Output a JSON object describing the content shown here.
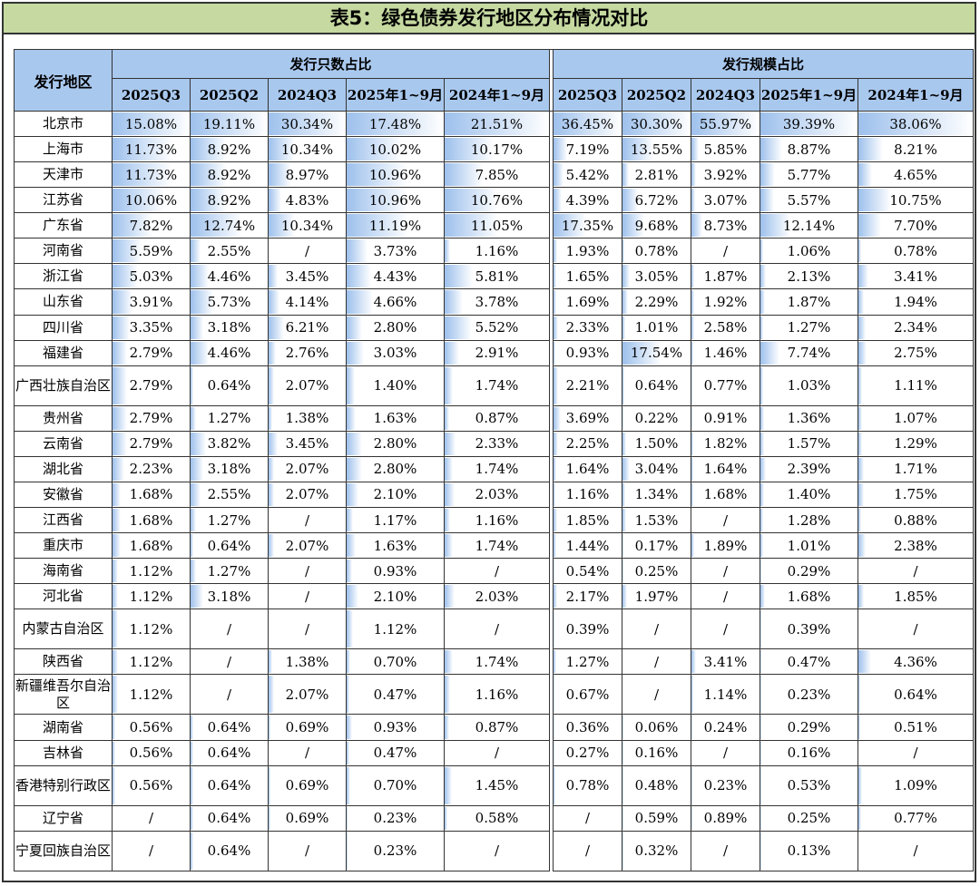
{
  "title": "表5：绿色债券发行地区分布情况对比",
  "header": {
    "region_label": "发行地区",
    "group_count": "发行只数占比",
    "group_scale": "发行规模占比",
    "columns": [
      "2025Q3",
      "2025Q2",
      "2024Q3",
      "2025年1~9月",
      "2024年1~9月"
    ]
  },
  "rows": [
    {
      "region": "北京市",
      "count": [
        "15.08%",
        "19.11%",
        "30.34%",
        "17.48%",
        "21.51%"
      ],
      "scale": [
        "36.45%",
        "30.30%",
        "55.97%",
        "39.39%",
        "38.06%"
      ]
    },
    {
      "region": "上海市",
      "count": [
        "11.73%",
        "8.92%",
        "10.34%",
        "10.02%",
        "10.17%"
      ],
      "scale": [
        "7.19%",
        "13.55%",
        "5.85%",
        "8.87%",
        "8.21%"
      ]
    },
    {
      "region": "天津市",
      "count": [
        "11.73%",
        "8.92%",
        "8.97%",
        "10.96%",
        "7.85%"
      ],
      "scale": [
        "5.42%",
        "2.81%",
        "3.92%",
        "5.77%",
        "4.65%"
      ]
    },
    {
      "region": "江苏省",
      "count": [
        "10.06%",
        "8.92%",
        "4.83%",
        "10.96%",
        "10.76%"
      ],
      "scale": [
        "4.39%",
        "6.72%",
        "3.07%",
        "5.57%",
        "10.75%"
      ]
    },
    {
      "region": "广东省",
      "count": [
        "7.82%",
        "12.74%",
        "10.34%",
        "11.19%",
        "11.05%"
      ],
      "scale": [
        "17.35%",
        "9.68%",
        "8.73%",
        "12.14%",
        "7.70%"
      ]
    },
    {
      "region": "河南省",
      "count": [
        "5.59%",
        "2.55%",
        "/",
        "3.73%",
        "1.16%"
      ],
      "scale": [
        "1.93%",
        "0.78%",
        "/",
        "1.06%",
        "0.78%"
      ]
    },
    {
      "region": "浙江省",
      "count": [
        "5.03%",
        "4.46%",
        "3.45%",
        "4.43%",
        "5.81%"
      ],
      "scale": [
        "1.65%",
        "3.05%",
        "1.87%",
        "2.13%",
        "3.41%"
      ]
    },
    {
      "region": "山东省",
      "count": [
        "3.91%",
        "5.73%",
        "4.14%",
        "4.66%",
        "3.78%"
      ],
      "scale": [
        "1.69%",
        "2.29%",
        "1.92%",
        "1.87%",
        "1.94%"
      ]
    },
    {
      "region": "四川省",
      "count": [
        "3.35%",
        "3.18%",
        "6.21%",
        "2.80%",
        "5.52%"
      ],
      "scale": [
        "2.33%",
        "1.01%",
        "2.58%",
        "1.27%",
        "2.34%"
      ]
    },
    {
      "region": "福建省",
      "count": [
        "2.79%",
        "4.46%",
        "2.76%",
        "3.03%",
        "2.91%"
      ],
      "scale": [
        "0.93%",
        "17.54%",
        "1.46%",
        "7.74%",
        "2.75%"
      ]
    },
    {
      "region": "广西壮族自治区",
      "tall": true,
      "count": [
        "2.79%",
        "0.64%",
        "2.07%",
        "1.40%",
        "1.74%"
      ],
      "scale": [
        "2.21%",
        "0.64%",
        "0.77%",
        "1.03%",
        "1.11%"
      ]
    },
    {
      "region": "贵州省",
      "count": [
        "2.79%",
        "1.27%",
        "1.38%",
        "1.63%",
        "0.87%"
      ],
      "scale": [
        "3.69%",
        "0.22%",
        "0.91%",
        "1.36%",
        "1.07%"
      ]
    },
    {
      "region": "云南省",
      "count": [
        "2.79%",
        "3.82%",
        "3.45%",
        "2.80%",
        "2.33%"
      ],
      "scale": [
        "2.25%",
        "1.50%",
        "1.82%",
        "1.57%",
        "1.29%"
      ]
    },
    {
      "region": "湖北省",
      "count": [
        "2.23%",
        "3.18%",
        "2.07%",
        "2.80%",
        "1.74%"
      ],
      "scale": [
        "1.64%",
        "3.04%",
        "1.64%",
        "2.39%",
        "1.71%"
      ]
    },
    {
      "region": "安徽省",
      "count": [
        "1.68%",
        "2.55%",
        "2.07%",
        "2.10%",
        "2.03%"
      ],
      "scale": [
        "1.16%",
        "1.34%",
        "1.68%",
        "1.40%",
        "1.75%"
      ]
    },
    {
      "region": "江西省",
      "count": [
        "1.68%",
        "1.27%",
        "/",
        "1.17%",
        "1.16%"
      ],
      "scale": [
        "1.85%",
        "1.53%",
        "/",
        "1.28%",
        "0.88%"
      ]
    },
    {
      "region": "重庆市",
      "count": [
        "1.68%",
        "0.64%",
        "2.07%",
        "1.63%",
        "1.74%"
      ],
      "scale": [
        "1.44%",
        "0.17%",
        "1.89%",
        "1.01%",
        "2.38%"
      ]
    },
    {
      "region": "海南省",
      "count": [
        "1.12%",
        "1.27%",
        "/",
        "0.93%",
        "/"
      ],
      "scale": [
        "0.54%",
        "0.25%",
        "/",
        "0.29%",
        "/"
      ]
    },
    {
      "region": "河北省",
      "count": [
        "1.12%",
        "3.18%",
        "/",
        "2.10%",
        "2.03%"
      ],
      "scale": [
        "2.17%",
        "1.97%",
        "/",
        "1.68%",
        "1.85%"
      ]
    },
    {
      "region": "内蒙古自治区",
      "tall": true,
      "count": [
        "1.12%",
        "/",
        "/",
        "1.12%",
        "/"
      ],
      "scale": [
        "0.39%",
        "/",
        "/",
        "0.39%",
        "/"
      ]
    },
    {
      "region": "陕西省",
      "count": [
        "1.12%",
        "/",
        "1.38%",
        "0.70%",
        "1.74%"
      ],
      "scale": [
        "1.27%",
        "/",
        "3.41%",
        "0.47%",
        "4.36%"
      ]
    },
    {
      "region": "新疆维吾尔自治区",
      "tall": true,
      "count": [
        "1.12%",
        "/",
        "2.07%",
        "0.47%",
        "1.16%"
      ],
      "scale": [
        "0.67%",
        "/",
        "1.14%",
        "0.23%",
        "0.64%"
      ]
    },
    {
      "region": "湖南省",
      "count": [
        "0.56%",
        "0.64%",
        "0.69%",
        "0.93%",
        "0.87%"
      ],
      "scale": [
        "0.36%",
        "0.06%",
        "0.24%",
        "0.29%",
        "0.51%"
      ]
    },
    {
      "region": "吉林省",
      "count": [
        "0.56%",
        "0.64%",
        "/",
        "0.47%",
        "/"
      ],
      "scale": [
        "0.27%",
        "0.16%",
        "/",
        "0.16%",
        "/"
      ]
    },
    {
      "region": "香港特别行政区",
      "tall": true,
      "count": [
        "0.56%",
        "0.64%",
        "0.69%",
        "0.70%",
        "1.45%"
      ],
      "scale": [
        "0.78%",
        "0.48%",
        "0.23%",
        "0.53%",
        "1.09%"
      ]
    },
    {
      "region": "辽宁省",
      "count": [
        "/",
        "0.64%",
        "0.69%",
        "0.23%",
        "0.58%"
      ],
      "scale": [
        "/",
        "0.59%",
        "0.89%",
        "0.25%",
        "0.77%"
      ]
    },
    {
      "region": "宁夏回族自治区",
      "tall": true,
      "count": [
        "/",
        "0.64%",
        "/",
        "0.23%",
        "/"
      ],
      "scale": [
        "/",
        "0.32%",
        "/",
        "0.13%",
        "/"
      ]
    }
  ]
}
